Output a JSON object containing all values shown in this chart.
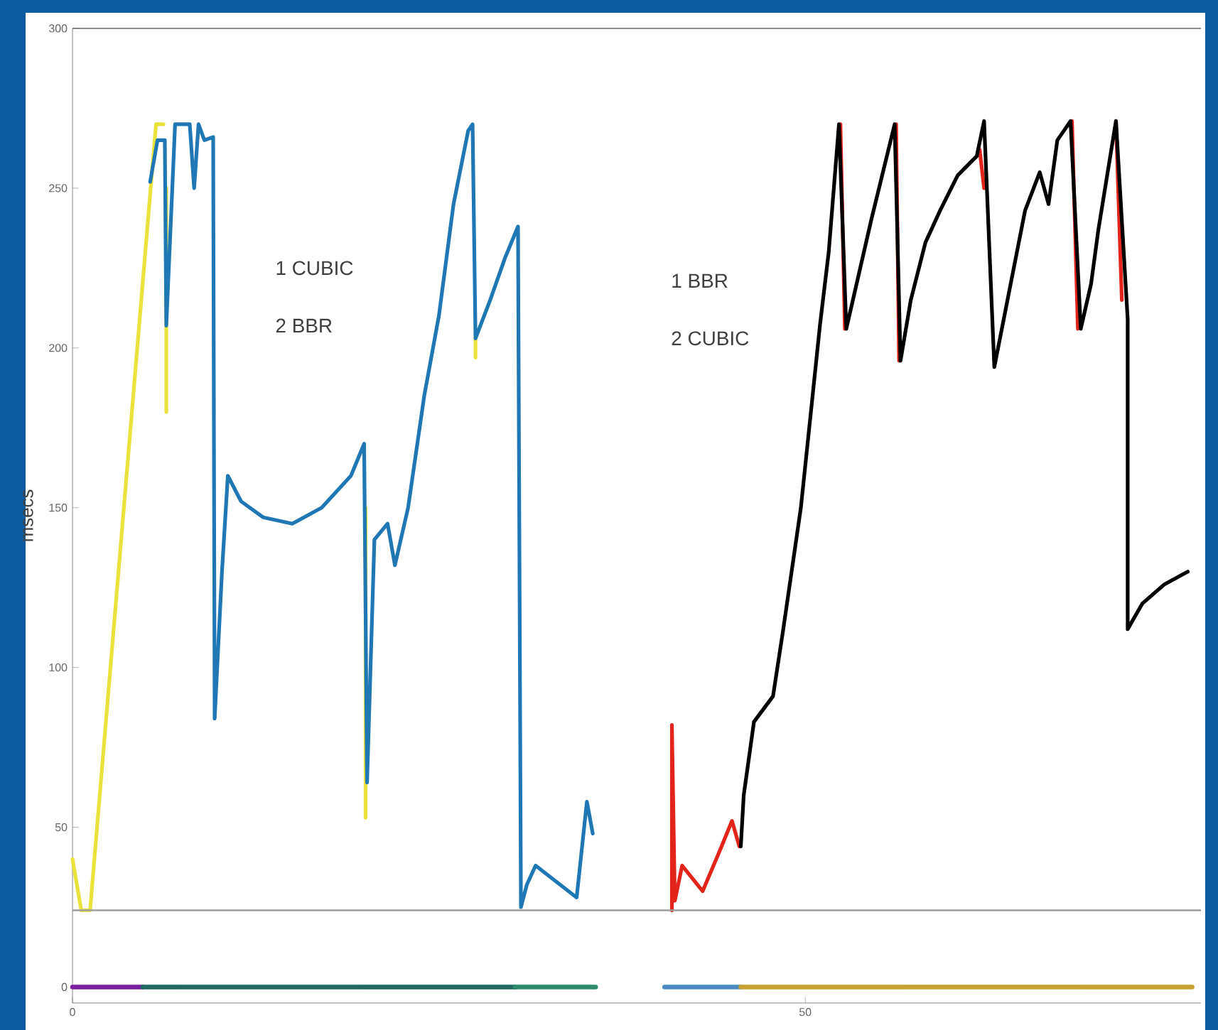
{
  "chart_data": {
    "type": "line",
    "ylabel": "msecs",
    "xlim": [
      0,
      77
    ],
    "ylim": [
      -5,
      300
    ],
    "xticks": [
      0,
      50
    ],
    "yticks": [
      0,
      50,
      100,
      150,
      200,
      250,
      300
    ],
    "grid": false,
    "marker": "none",
    "line_style": "solid",
    "annotations": [
      "1 CUBIC",
      "2 BBR",
      "1 BBR",
      "2 CUBIC"
    ],
    "ref_lines": [
      {
        "axis": "y",
        "value": 24,
        "color": "#9e9e9e"
      }
    ],
    "series": [
      {
        "color": "#e8e23a",
        "x": [
          0,
          0.6,
          1.2,
          5.7,
          6.2,
          6.3,
          6.4,
          6.4,
          6.5,
          20.0,
          20.0,
          20.1,
          27.5,
          27.5
        ],
        "values": [
          40,
          24,
          24,
          270,
          270,
          null,
          250,
          180,
          null,
          150,
          53,
          null,
          203,
          197
        ]
      },
      {
        "color": "#1f77b4",
        "x": [
          5.3,
          5.8,
          6.3,
          6.4,
          7.0,
          8.0,
          8.3,
          8.6,
          9.0,
          9.6,
          9.7,
          10.2,
          10.6,
          11.5,
          13,
          15,
          17,
          19,
          19.9,
          20.1,
          20.6,
          21.5,
          22.0,
          22.9,
          24,
          25,
          26,
          27.0,
          27.3,
          27.5,
          28.5,
          29.5,
          30.4,
          30.6,
          31.0,
          31.6,
          33,
          34.4,
          35.1,
          35.5
        ],
        "values": [
          252,
          265,
          265,
          207,
          270,
          270,
          250,
          270,
          265,
          266,
          84,
          130,
          160,
          152,
          147,
          145,
          150,
          160,
          170,
          64,
          140,
          145,
          132,
          150,
          185,
          210,
          245,
          268,
          270,
          203,
          215,
          228,
          238,
          25,
          32,
          38,
          33,
          28,
          58,
          48
        ]
      },
      {
        "color": "#e3241b",
        "x": [
          40.9,
          40.9,
          41.1,
          41.6,
          43.0,
          44.2,
          45.0,
          45.5,
          46,
          52.4,
          52.7,
          53,
          56.2,
          56.4,
          57,
          61.9,
          62.2,
          63,
          68.2,
          68.6,
          69,
          71.2,
          71.6
        ],
        "values": [
          24,
          82,
          27,
          38,
          30,
          43,
          52,
          44,
          null,
          270,
          206,
          null,
          270,
          196,
          null,
          262,
          250,
          null,
          271,
          206,
          null,
          271,
          215
        ]
      },
      {
        "color": "#000000",
        "x": [
          45.6,
          45.8,
          46.5,
          47.8,
          48.5,
          49.7,
          50.5,
          51.0,
          51.6,
          52.3,
          52.8,
          53.5,
          54.5,
          56.1,
          56.5,
          57.2,
          58.2,
          59.2,
          60.4,
          61.7,
          62.2,
          62.9,
          63.8,
          65.0,
          66.0,
          66.6,
          67.2,
          68.1,
          68.8,
          69.5,
          70.0,
          71.2,
          72.0,
          72.0,
          73,
          74.5,
          76.1
        ],
        "values": [
          44,
          60,
          83,
          91,
          112,
          150,
          185,
          207,
          230,
          270,
          206,
          220,
          240,
          270,
          196,
          215,
          233,
          243,
          254,
          260,
          271,
          194,
          215,
          243,
          255,
          245,
          265,
          271,
          206,
          220,
          237,
          271,
          209,
          112,
          120,
          126,
          130
        ]
      },
      {
        "color": "#7b1fa2",
        "x": [
          0,
          4.8
        ],
        "values": [
          0,
          0
        ]
      },
      {
        "color": "#1e6a60",
        "x": [
          4.8,
          30.2
        ],
        "values": [
          0,
          0
        ]
      },
      {
        "color": "#2a8a6a",
        "x": [
          30.2,
          35.7
        ],
        "values": [
          0,
          0
        ]
      },
      {
        "color": "#4a8ac0",
        "x": [
          40.4,
          45.6
        ],
        "values": [
          0,
          0
        ]
      },
      {
        "color": "#c8a030",
        "x": [
          45.6,
          76.4
        ],
        "values": [
          0,
          0
        ]
      }
    ]
  }
}
